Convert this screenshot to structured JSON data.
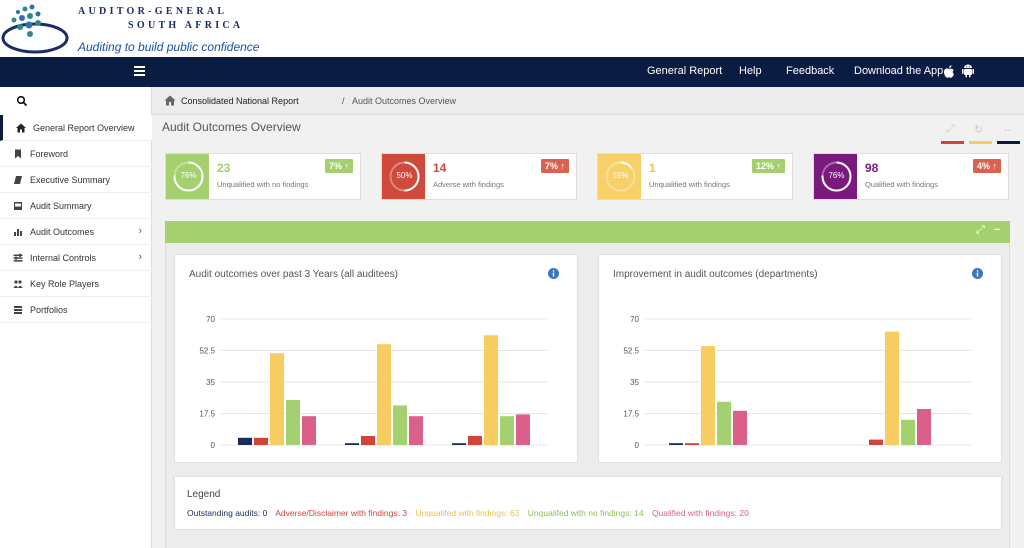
{
  "brand": {
    "title_line1": "AUDITOR-GENERAL",
    "title_line2": "SOUTH AFRICA",
    "tagline": "Auditing to build public confidence"
  },
  "navbar": {
    "items": [
      "General Report",
      "Help",
      "Feedback",
      "Download the App"
    ],
    "icons": [
      "menu-icon",
      "apple-icon",
      "android-icon"
    ]
  },
  "sidebar": {
    "items": [
      {
        "label": "General Report Overview",
        "icon": "home-icon",
        "active": true
      },
      {
        "label": "Foreword",
        "icon": "bookmark-icon"
      },
      {
        "label": "Executive Summary",
        "icon": "book-icon"
      },
      {
        "label": "Audit Summary",
        "icon": "inbox-icon"
      },
      {
        "label": "Audit Outcomes",
        "icon": "bar-chart-icon",
        "has_children": true
      },
      {
        "label": "Internal Controls",
        "icon": "sliders-icon",
        "has_children": true
      },
      {
        "label": "Key Role Players",
        "icon": "users-icon"
      },
      {
        "label": "Portfolios",
        "icon": "list-icon"
      }
    ]
  },
  "breadcrumb": {
    "items": [
      "Consolidated National Report",
      "Audit Outcomes Overview"
    ],
    "separator": "/"
  },
  "page": {
    "title": "Audit Outcomes Overview"
  },
  "stats": [
    {
      "percent": "76%",
      "percent_value": 76,
      "value": "23",
      "caption": "Unqualified with no findings",
      "change": "7%",
      "color": "#a5d06f",
      "badge_color": "#a5d06f"
    },
    {
      "percent": "50%",
      "percent_value": 50,
      "value": "14",
      "caption": "Adverse with findings",
      "change": "7%",
      "color": "#cf4a3a",
      "badge_color": "#d9634f"
    },
    {
      "percent": "15%",
      "percent_value": 15,
      "value": "1",
      "caption": "Unqualified with findings",
      "change": "12%",
      "color": "#f7d068",
      "badge_color": "#a5d06f"
    },
    {
      "percent": "76%",
      "percent_value": 76,
      "value": "98",
      "caption": "Qualified with findings",
      "change": "4%",
      "color": "#7b1a7e",
      "badge_color": "#d9634f"
    }
  ],
  "colors": {
    "outstanding": "#1a2c5b",
    "adverse": "#d0443a",
    "unqualified_with_findings": "#f7cd62",
    "unqualified_no_findings": "#a5d06f",
    "qualified": "#da5f8a",
    "navbar": "#0b1c42"
  },
  "chart_data": [
    {
      "type": "bar",
      "title": "Audit outcomes over past 3 Years (all auditees)",
      "categories": [
        "",
        "",
        ""
      ],
      "ylim": [
        0,
        70
      ],
      "yticks": [
        "70",
        "52.5",
        "35",
        "17.5",
        "0"
      ],
      "series": [
        {
          "name": "Outstanding audits",
          "values": [
            4,
            1,
            1
          ]
        },
        {
          "name": "Adverse/Disclaimer with findings",
          "values": [
            4,
            5,
            5
          ]
        },
        {
          "name": "Unqualifed with findings",
          "values": [
            51,
            56,
            61
          ]
        },
        {
          "name": "Unqualifed with no findings",
          "values": [
            25,
            22,
            16
          ]
        },
        {
          "name": "Qualified with findings",
          "values": [
            16,
            16,
            17
          ]
        }
      ],
      "grid": true
    },
    {
      "type": "bar",
      "title": "Improvement in audit outcomes (departments)",
      "categories": [
        "",
        ""
      ],
      "ylim": [
        0,
        70
      ],
      "yticks": [
        "70",
        "52.5",
        "35",
        "17.5",
        "0"
      ],
      "series": [
        {
          "name": "Outstanding audits",
          "values": [
            1,
            0
          ]
        },
        {
          "name": "Adverse/Disclaimer with findings",
          "values": [
            1,
            3
          ]
        },
        {
          "name": "Unqualifed with findings",
          "values": [
            55,
            63
          ]
        },
        {
          "name": "Unqualifed with no findings",
          "values": [
            24,
            14
          ]
        },
        {
          "name": "Qualified with findings",
          "values": [
            19,
            20
          ]
        }
      ],
      "grid": true
    }
  ],
  "legend": {
    "title": "Legend",
    "items": [
      "Outstanding audits: 0",
      "Adverse/Disclaimer with findings: 3",
      "Unqualifed with findings: 63",
      "Unqualifed with no findings: 14",
      "Qualified with findings: 20"
    ]
  }
}
